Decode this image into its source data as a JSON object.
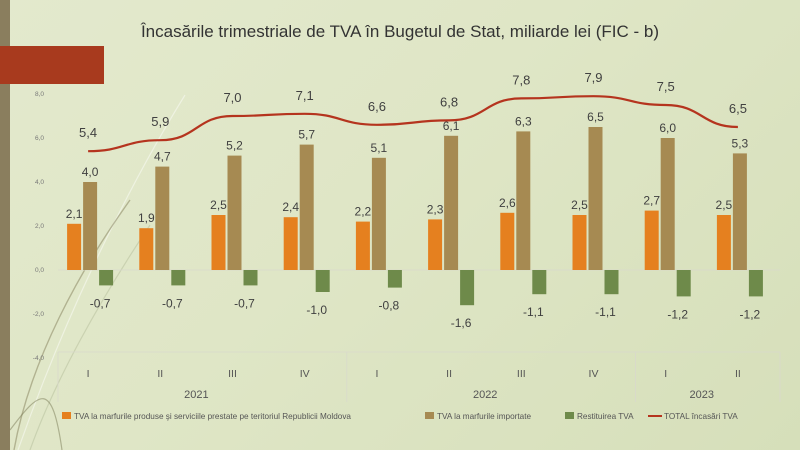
{
  "slide": {
    "colors": {
      "accent_bar": "#a83a1e",
      "left_strip": "#8a7e5e"
    }
  },
  "chart_data": {
    "type": "bar",
    "title": "Încasările trimestriale de TVA în Bugetul de Stat, miliarde lei (FIC - b)",
    "categories": [
      "I",
      "II",
      "III",
      "IV",
      "I",
      "II",
      "III",
      "IV",
      "I",
      "II"
    ],
    "year_groups": [
      {
        "label": "2021",
        "count": 4
      },
      {
        "label": "2022",
        "count": 4
      },
      {
        "label": "2023",
        "count": 2
      }
    ],
    "ylim": [
      -4.0,
      8.0
    ],
    "yticks": [
      "-4,0",
      "-2,0",
      "0,0",
      "2,0",
      "4,0",
      "6,0",
      "8,0"
    ],
    "ytick_values": [
      -4,
      -2,
      0,
      2,
      4,
      6,
      8
    ],
    "grid": false,
    "legend_position": "bottom",
    "series": [
      {
        "name": "TVA la marfurile produse şi serviciile prestate pe teritoriul Republicii Moldova",
        "kind": "bar",
        "color": "#e5801f",
        "values": [
          2.1,
          1.9,
          2.5,
          2.4,
          2.2,
          2.3,
          2.6,
          2.5,
          2.7,
          2.5
        ],
        "labels": [
          "2,1",
          "1,9",
          "2,5",
          "2,4",
          "2,2",
          "2,3",
          "2,6",
          "2,5",
          "2,7",
          "2,5"
        ]
      },
      {
        "name": "TVA la marfurile importate",
        "kind": "bar",
        "color": "#a68a52",
        "values": [
          4.0,
          4.7,
          5.2,
          5.7,
          5.1,
          6.1,
          6.3,
          6.5,
          6.0,
          5.3
        ],
        "labels": [
          "4,0",
          "4,7",
          "5,2",
          "5,7",
          "5,1",
          "6,1",
          "6,3",
          "6,5",
          "6,0",
          "5,3"
        ]
      },
      {
        "name": "Restituirea TVA",
        "kind": "bar",
        "color": "#6e8a4a",
        "values": [
          -0.7,
          -0.7,
          -0.7,
          -1.0,
          -0.8,
          -1.6,
          -1.1,
          -1.1,
          -1.2,
          -1.2
        ],
        "labels": [
          "-0,7",
          "-0,7",
          "-0,7",
          "-1,0",
          "-0,8",
          "-1,6",
          "-1,1",
          "-1,1",
          "-1,2",
          "-1,2"
        ]
      },
      {
        "name": "TOTAL încasări TVA",
        "kind": "line",
        "color": "#b5341e",
        "values": [
          5.4,
          5.9,
          7.0,
          7.1,
          6.6,
          6.8,
          7.8,
          7.9,
          7.5,
          6.5
        ],
        "labels": [
          "5,4",
          "5,9",
          "7,0",
          "7,1",
          "6,6",
          "6,8",
          "7,8",
          "7,9",
          "7,5",
          "6,5"
        ]
      }
    ]
  }
}
